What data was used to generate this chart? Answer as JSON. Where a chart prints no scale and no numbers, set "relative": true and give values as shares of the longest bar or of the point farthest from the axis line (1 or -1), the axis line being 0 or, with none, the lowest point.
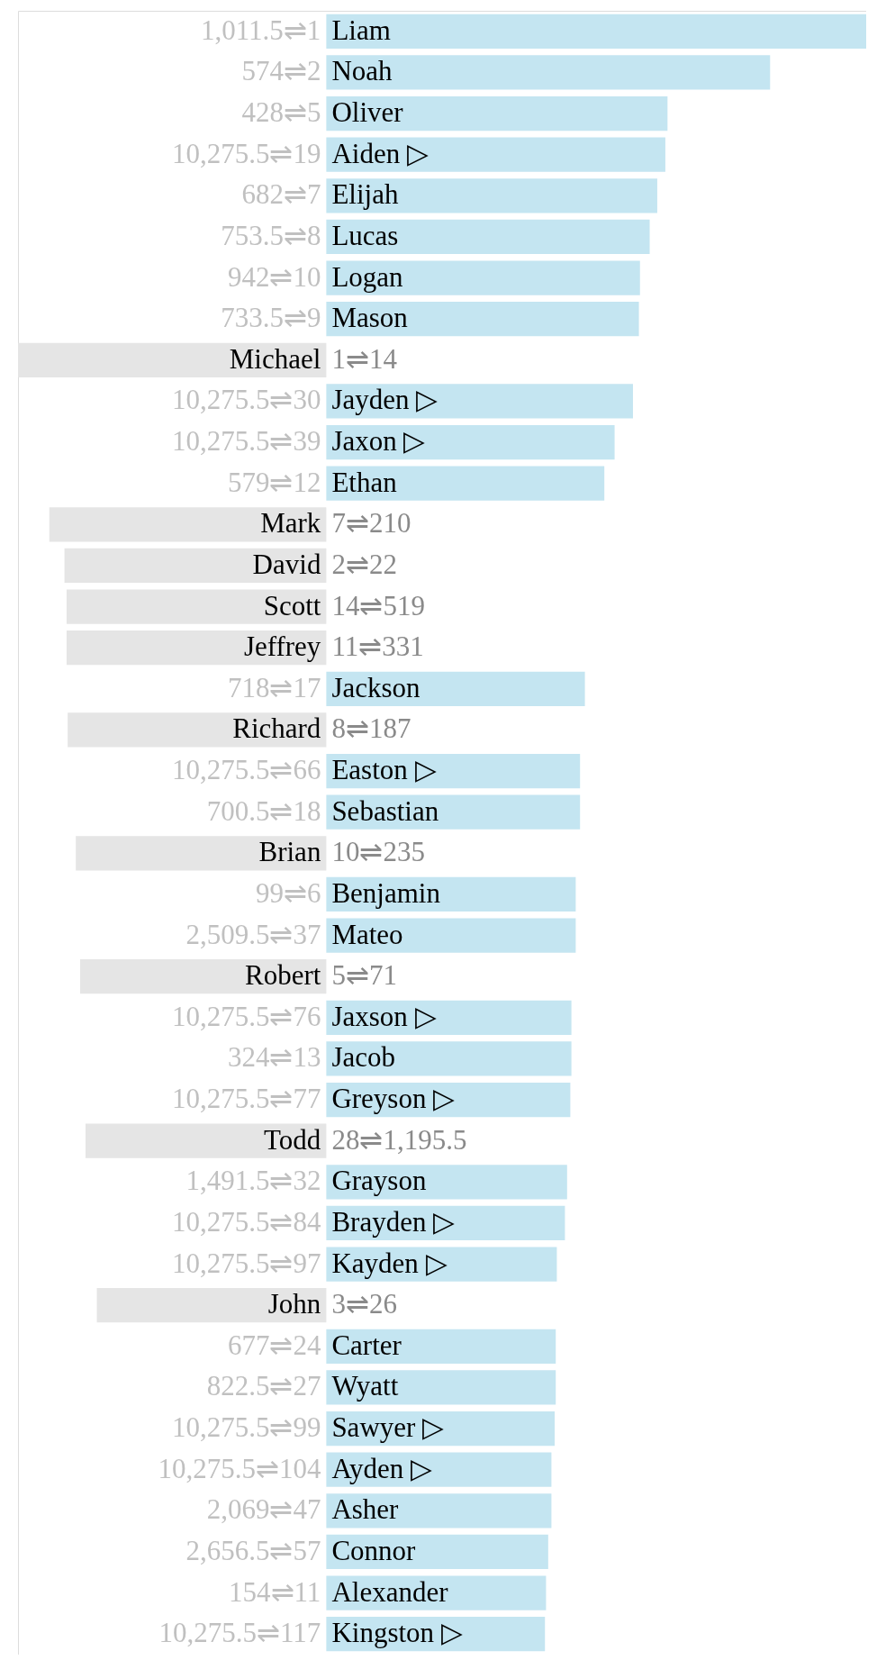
{
  "chart_data": {
    "type": "bar",
    "orientation": "horizontal",
    "relative": true,
    "categories": [
      "Liam",
      "Noah",
      "Oliver",
      "Aiden ▷",
      "Elijah",
      "Lucas",
      "Logan",
      "Mason",
      "Michael",
      "Jayden ▷",
      "Jaxon ▷",
      "Ethan",
      "Mark",
      "David",
      "Scott",
      "Jeffrey",
      "Jackson",
      "Richard",
      "Easton ▷",
      "Sebastian",
      "Brian",
      "Benjamin",
      "Mateo",
      "Robert",
      "Jaxson ▷",
      "Jacob",
      "Greyson ▷",
      "Todd",
      "Grayson",
      "Brayden ▷",
      "Kayden ▷",
      "John",
      "Carter",
      "Wyatt",
      "Sawyer ▷",
      "Ayden ▷",
      "Asher",
      "Connor",
      "Alexander",
      "Kingston ▷"
    ],
    "values": [
      1,
      0.822,
      0.632,
      0.628,
      0.613,
      0.599,
      0.581,
      0.579,
      -0.571,
      0.568,
      0.534,
      0.515,
      -0.513,
      -0.485,
      -0.481,
      -0.481,
      0.479,
      -0.479,
      0.47,
      0.47,
      -0.464,
      0.462,
      0.462,
      -0.456,
      0.454,
      0.454,
      0.452,
      -0.446,
      0.446,
      0.442,
      0.427,
      -0.425,
      0.425,
      0.425,
      0.423,
      0.417,
      0.417,
      0.411,
      0.407,
      0.405
    ],
    "colors": [
      "#c4e5f1",
      "#c4e5f1",
      "#c4e5f1",
      "#c4e5f1",
      "#c4e5f1",
      "#c4e5f1",
      "#c4e5f1",
      "#c4e5f1",
      "#e5e5e5",
      "#c4e5f1",
      "#c4e5f1",
      "#c4e5f1",
      "#e5e5e5",
      "#e5e5e5",
      "#e5e5e5",
      "#e5e5e5",
      "#c4e5f1",
      "#e5e5e5",
      "#c4e5f1",
      "#c4e5f1",
      "#e5e5e5",
      "#c4e5f1",
      "#c4e5f1",
      "#e5e5e5",
      "#c4e5f1",
      "#c4e5f1",
      "#c4e5f1",
      "#e5e5e5",
      "#c4e5f1",
      "#c4e5f1",
      "#c4e5f1",
      "#e5e5e5",
      "#c4e5f1",
      "#c4e5f1",
      "#c4e5f1",
      "#c4e5f1",
      "#c4e5f1",
      "#c4e5f1",
      "#c4e5f1",
      "#c4e5f1"
    ],
    "annotations": [
      "1,011.5⇌1",
      "574⇌2",
      "428⇌5",
      "10,275.5⇌19",
      "682⇌7",
      "753.5⇌8",
      "942⇌10",
      "733.5⇌9",
      "1⇌14",
      "10,275.5⇌30",
      "10,275.5⇌39",
      "579⇌12",
      "7⇌210",
      "2⇌22",
      "14⇌519",
      "11⇌331",
      "718⇌17",
      "8⇌187",
      "10,275.5⇌66",
      "700.5⇌18",
      "10⇌235",
      "99⇌6",
      "2,509.5⇌37",
      "5⇌71",
      "10,275.5⇌76",
      "324⇌13",
      "10,275.5⇌77",
      "28⇌1,195.5",
      "1,491.5⇌32",
      "10,275.5⇌84",
      "10,275.5⇌97",
      "3⇌26",
      "677⇌24",
      "822.5⇌27",
      "10,275.5⇌99",
      "10,275.5⇌104",
      "2,069⇌47",
      "2,656.5⇌57",
      "154⇌11",
      "10,275.5⇌117"
    ]
  }
}
